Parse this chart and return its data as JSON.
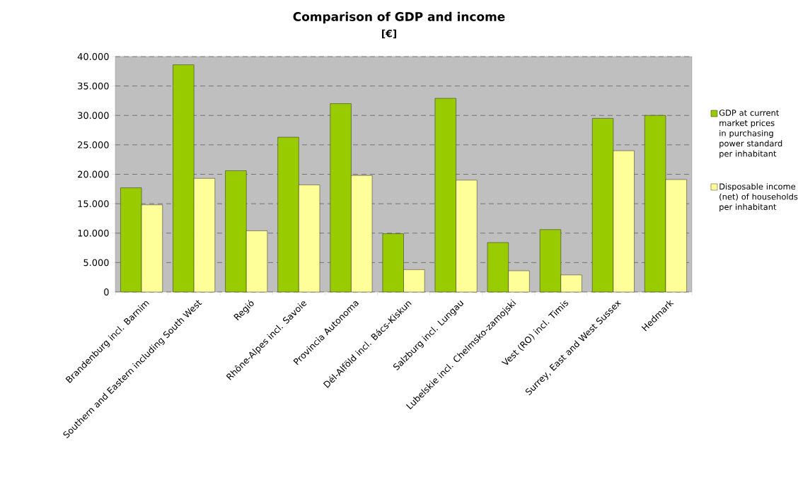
{
  "chart_data": {
    "type": "bar",
    "title": "Comparison of GDP and income",
    "subtitle": "[€]",
    "categories": [
      "Brandenburg incl. Barnim",
      "Southern and Eastern including South West",
      "Regió",
      "Rhône-Alpes incl. Savoie",
      "Provincia Autonoma",
      "Dél-Alföld incl. Bács-Kiskun",
      "Salzburg incl. Lungau",
      "Lubelskie incl. Chelmsko-zamojski",
      "Vest (RO) incl. Timis",
      "Surrey, East and West Sussex",
      "Hedmark"
    ],
    "series": [
      {
        "name": "GDP at current market prices in purchasing power standard per inhabitant",
        "color": "#99cc00",
        "values": [
          17700,
          38600,
          20600,
          26300,
          32000,
          9900,
          32900,
          8400,
          10600,
          29500,
          30000
        ]
      },
      {
        "name": "Disposable income (net) of households per inhabitant",
        "color": "#ffff99",
        "values": [
          14800,
          19300,
          10400,
          18200,
          19800,
          3800,
          19000,
          3600,
          2900,
          24000,
          19100
        ]
      }
    ],
    "ylim": [
      0,
      40000
    ],
    "yticks": [
      {
        "value": 0,
        "label": "0"
      },
      {
        "value": 5000,
        "label": "5.000"
      },
      {
        "value": 10000,
        "label": "10.000"
      },
      {
        "value": 15000,
        "label": "15.000"
      },
      {
        "value": 20000,
        "label": "20.000"
      },
      {
        "value": 25000,
        "label": "25.000"
      },
      {
        "value": 30000,
        "label": "30.000"
      },
      {
        "value": 35000,
        "label": "35.000"
      },
      {
        "value": 40000,
        "label": "40.000"
      }
    ],
    "grid": "y",
    "legend": "right"
  }
}
